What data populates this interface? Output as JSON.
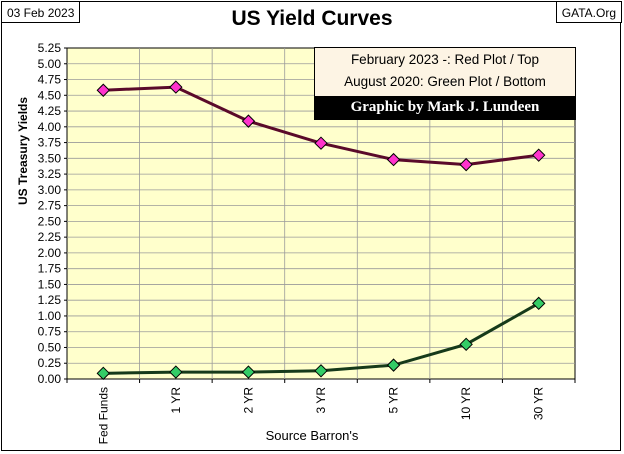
{
  "header": {
    "date": "03 Feb 2023",
    "source_site": "GATA.Org"
  },
  "legend": {
    "line1": "February 2023 -: Red Plot / Top",
    "line2": "August 2020: Green Plot / Bottom",
    "credit": "Graphic by Mark J. Lundeen"
  },
  "chart_data": {
    "type": "line",
    "title": "US Yield Curves",
    "xlabel": "Source Barron's",
    "ylabel": "US Treasury Yields",
    "categories": [
      "Fed Funds",
      "1 YR",
      "2 YR",
      "3 YR",
      "5 YR",
      "10 YR",
      "30 YR"
    ],
    "ylim": [
      0,
      5.25
    ],
    "ytick_step": 0.25,
    "grid": true,
    "legend_placement": "top-right",
    "series": [
      {
        "name": "February 2023",
        "values": [
          4.58,
          4.63,
          4.09,
          3.74,
          3.48,
          3.4,
          3.55
        ],
        "line_color": "#5a0a2a",
        "marker_color": "#ff33cc"
      },
      {
        "name": "August 2020",
        "values": [
          0.09,
          0.11,
          0.11,
          0.13,
          0.22,
          0.55,
          1.2
        ],
        "line_color": "#163a1a",
        "marker_color": "#33cc66"
      }
    ],
    "plot_background": "#ffffcc"
  }
}
